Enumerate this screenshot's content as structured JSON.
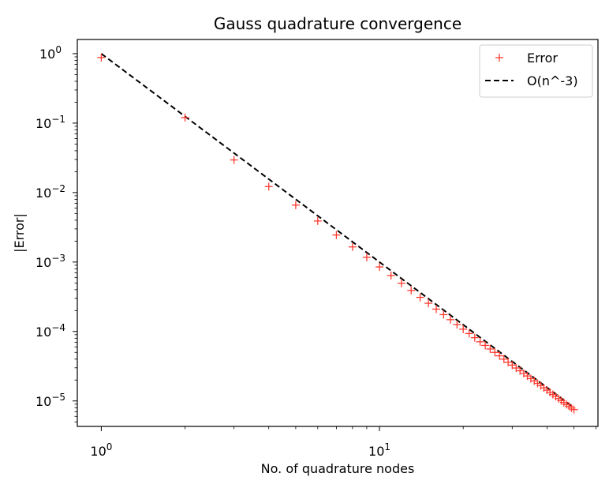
{
  "chart_data": {
    "type": "scatter",
    "title": "Gauss quadrature convergence",
    "xlabel": "No. of quadrature nodes",
    "ylabel": "|Error|",
    "xscale": "log",
    "yscale": "log",
    "xlim": [
      0.82,
      61
    ],
    "ylim": [
      4.3e-06,
      1.6
    ],
    "grid": false,
    "legend_position": "upper-right",
    "x_ticks": [
      {
        "value": 1,
        "base": "10",
        "exp": "0"
      },
      {
        "value": 10,
        "base": "10",
        "exp": "1"
      }
    ],
    "y_ticks": [
      {
        "value": 1,
        "base": "10",
        "exp": "0"
      },
      {
        "value": 0.1,
        "base": "10",
        "exp": "−1"
      },
      {
        "value": 0.01,
        "base": "10",
        "exp": "−2"
      },
      {
        "value": 0.001,
        "base": "10",
        "exp": "−3"
      },
      {
        "value": 0.0001,
        "base": "10",
        "exp": "−4"
      },
      {
        "value": 1e-05,
        "base": "10",
        "exp": "−5"
      }
    ],
    "series": [
      {
        "name": "Error",
        "marker": "plus",
        "color": "#ff3b30",
        "x": [
          1,
          2,
          3,
          4,
          5,
          6,
          7,
          8,
          9,
          10,
          11,
          12,
          13,
          14,
          15,
          16,
          17,
          18,
          19,
          20,
          21,
          22,
          23,
          24,
          25,
          26,
          27,
          28,
          29,
          30,
          31,
          32,
          33,
          34,
          35,
          36,
          37,
          38,
          39,
          40,
          41,
          42,
          43,
          44,
          45,
          46,
          47,
          48,
          49,
          50
        ],
        "y": [
          0.88,
          0.12,
          0.0295,
          0.0122,
          0.0066,
          0.0039,
          0.00245,
          0.00165,
          0.00117,
          0.00085,
          0.00064,
          0.000495,
          0.00039,
          0.00031,
          0.000255,
          0.00021,
          0.000175,
          0.000148,
          0.000126,
          0.000108,
          9.35e-05,
          8.15e-05,
          7.1e-05,
          6.3e-05,
          5.6e-05,
          5e-05,
          4.46e-05,
          4e-05,
          3.61e-05,
          3.28e-05,
          2.98e-05,
          2.72e-05,
          2.49e-05,
          2.29e-05,
          2.1e-05,
          1.94e-05,
          1.79e-05,
          1.66e-05,
          1.54e-05,
          1.43e-05,
          1.33e-05,
          1.24e-05,
          1.16e-05,
          1.08e-05,
          1.01e-05,
          9.5e-06,
          8.9e-06,
          8.4e-06,
          7.9e-06,
          7.5e-06
        ]
      },
      {
        "name": "O(n^-3)",
        "line_style": "dashed",
        "color": "#000000",
        "formula": "x^-3",
        "x": [
          1,
          50
        ],
        "y": [
          1,
          8e-06
        ]
      }
    ]
  }
}
